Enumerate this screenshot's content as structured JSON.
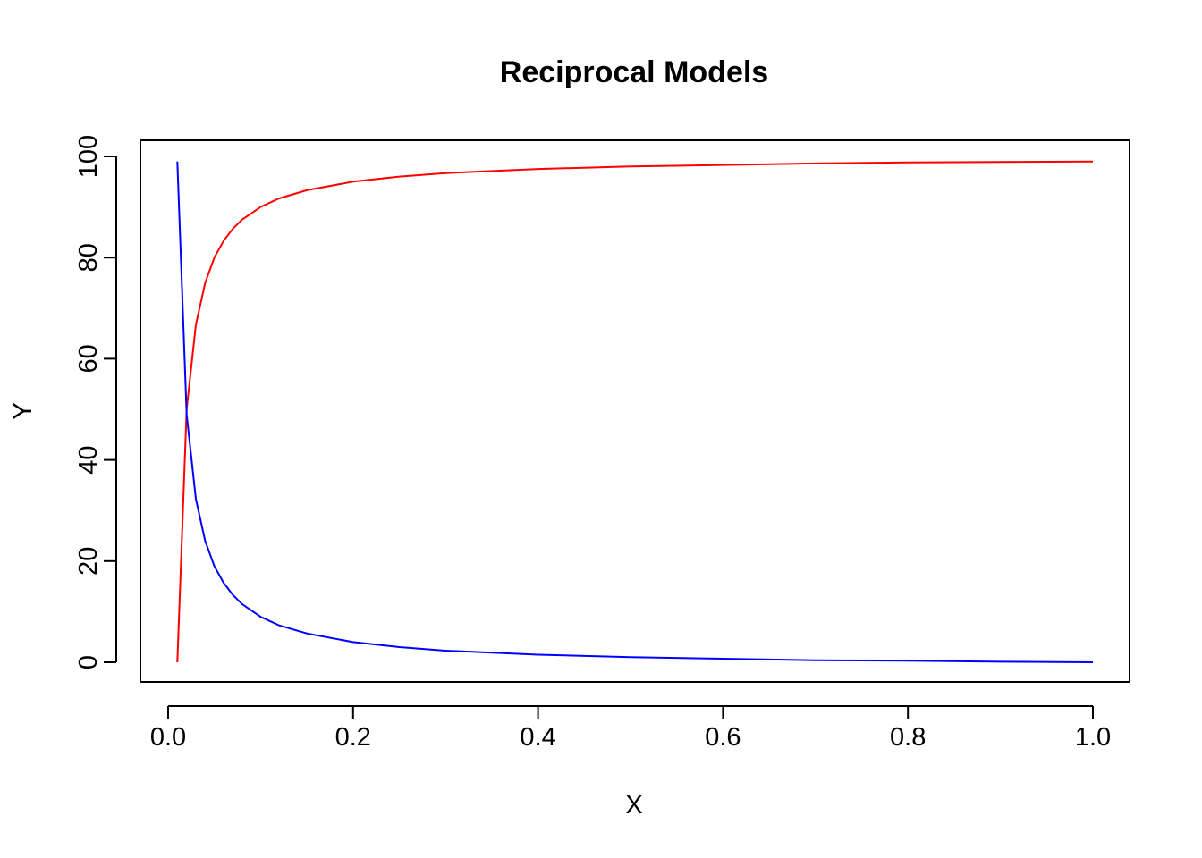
{
  "chart_data": {
    "type": "line",
    "title": "Reciprocal Models",
    "xlabel": "X",
    "ylabel": "Y",
    "xlim": [
      0.0,
      1.0
    ],
    "ylim": [
      0,
      100
    ],
    "x_ticks": [
      0.0,
      0.2,
      0.4,
      0.6,
      0.8,
      1.0
    ],
    "x_tick_labels": [
      "0.0",
      "0.2",
      "0.4",
      "0.6",
      "0.8",
      "1.0"
    ],
    "y_ticks": [
      0,
      20,
      40,
      60,
      80,
      100
    ],
    "y_tick_labels": [
      "0",
      "20",
      "40",
      "60",
      "80",
      "100"
    ],
    "grid": false,
    "legend": "none",
    "x": [
      0.01,
      0.02,
      0.03,
      0.04,
      0.05,
      0.06,
      0.07,
      0.08,
      0.1,
      0.12,
      0.15,
      0.2,
      0.25,
      0.3,
      0.4,
      0.5,
      0.6,
      0.7,
      0.8,
      0.9,
      1.0
    ],
    "series": [
      {
        "color": "#ff0000",
        "values": [
          0,
          50,
          66.7,
          75,
          80,
          83.3,
          85.7,
          87.5,
          90,
          91.7,
          93.3,
          95,
          96,
          96.7,
          97.5,
          98,
          98.3,
          98.6,
          98.8,
          98.9,
          99
        ]
      },
      {
        "color": "#0000ff",
        "values": [
          99,
          49,
          32.3,
          24,
          19,
          15.7,
          13.3,
          11.5,
          9,
          7.3,
          5.7,
          4,
          3,
          2.3,
          1.5,
          1,
          0.7,
          0.4,
          0.3,
          0.1,
          0
        ]
      }
    ]
  }
}
